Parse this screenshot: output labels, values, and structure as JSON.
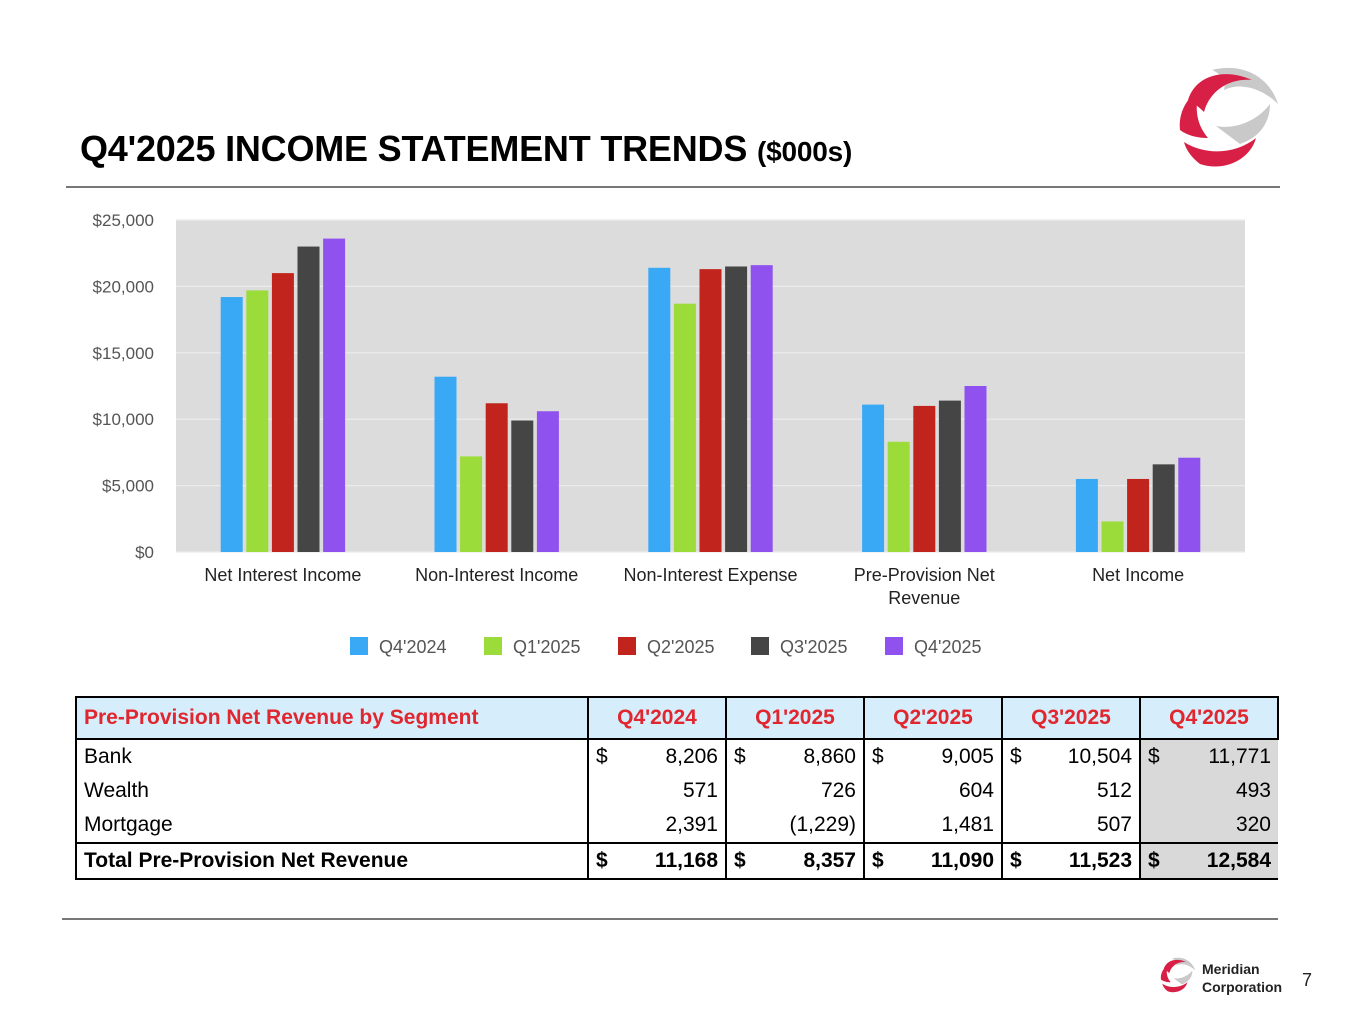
{
  "header": {
    "title_main": "Q4'2025 INCOME STATEMENT TRENDS",
    "title_unit": "($000s)"
  },
  "colors": {
    "series": [
      "#3aa9f5",
      "#9bdb3a",
      "#c0241c",
      "#454545",
      "#8f52ee"
    ],
    "plot_bg": "#dcdcdc",
    "table_header_bg": "#d6eefb",
    "table_header_text": "#e0262f",
    "brand": "#d81f45"
  },
  "chart_data": {
    "type": "bar",
    "title": "",
    "xlabel": "",
    "ylabel": "",
    "ylim": [
      0,
      25000
    ],
    "yticks": [
      0,
      5000,
      10000,
      15000,
      20000,
      25000
    ],
    "ytick_labels": [
      "$0",
      "$5,000",
      "$10,000",
      "$15,000",
      "$20,000",
      "$25,000"
    ],
    "categories": [
      [
        "Net Interest Income"
      ],
      [
        "Non-Interest Income"
      ],
      [
        "Non-Interest Expense"
      ],
      [
        "Pre-Provision Net",
        "Revenue"
      ],
      [
        "Net Income"
      ]
    ],
    "series": [
      {
        "name": "Q4'2024",
        "values": [
          19200,
          13200,
          21400,
          11100,
          5500
        ]
      },
      {
        "name": "Q1'2025",
        "values": [
          19700,
          7200,
          18700,
          8300,
          2300
        ]
      },
      {
        "name": "Q2'2025",
        "values": [
          21000,
          11200,
          21300,
          11000,
          5500
        ]
      },
      {
        "name": "Q3'2025",
        "values": [
          23000,
          9900,
          21500,
          11400,
          6600
        ]
      },
      {
        "name": "Q4'2025",
        "values": [
          23600,
          10600,
          21600,
          12500,
          7100
        ]
      }
    ],
    "grid": true,
    "legend": "bottom"
  },
  "table": {
    "title": "Pre-Provision Net Revenue by Segment",
    "columns": [
      "Q4'2024",
      "Q1'2025",
      "Q2'2025",
      "Q3'2025",
      "Q4'2025"
    ],
    "rows": [
      {
        "label": "Bank",
        "values": [
          "8,206",
          "8,860",
          "9,005",
          "10,504",
          "11,771"
        ]
      },
      {
        "label": "Wealth",
        "values": [
          "571",
          "726",
          "604",
          "512",
          "493"
        ]
      },
      {
        "label": "Mortgage",
        "values": [
          "2,391",
          "(1,229)",
          "1,481",
          "507",
          "320"
        ]
      }
    ],
    "total": {
      "label": "Total Pre-Provision Net Revenue",
      "values": [
        "11,168",
        "8,357",
        "11,090",
        "11,523",
        "12,584"
      ]
    },
    "currency": "$"
  },
  "footer": {
    "company_line1": "Meridian",
    "company_line2": "Corporation",
    "page_number": "7"
  }
}
